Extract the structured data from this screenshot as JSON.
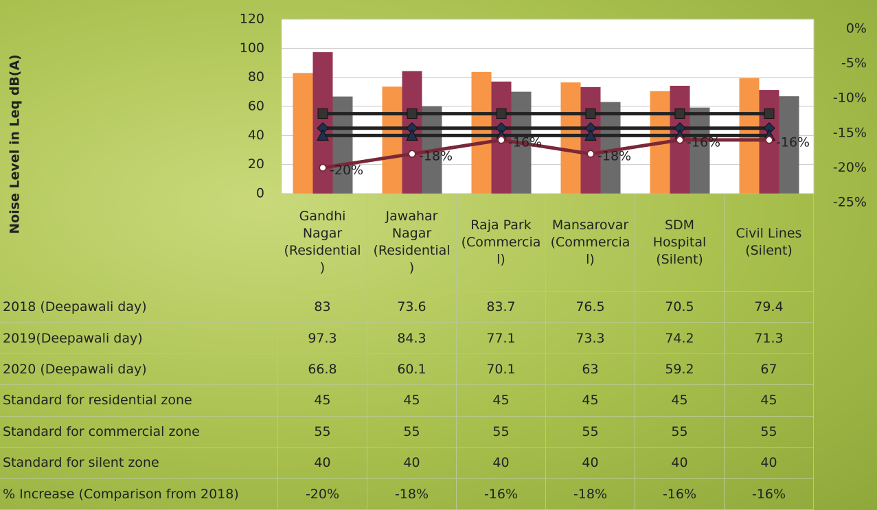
{
  "chart_data": {
    "type": "bar",
    "y_label": "Noise Level in Leq dB(A)",
    "categories": [
      "Gandhi Nagar (Residential)",
      "Jawahar Nagar (Residential)",
      "Raja Park (Commercial)",
      "Mansarovar (Commercial)",
      "SDM Hospital (Silent)",
      "Civil Lines (Silent)"
    ],
    "series": [
      {
        "name": "2018 (Deepawali day)",
        "type": "bar",
        "color": "#f79646",
        "values": [
          83,
          73.6,
          83.7,
          76.5,
          70.5,
          79.4
        ]
      },
      {
        "name": "2019(Deepawali day)",
        "type": "bar",
        "color": "#953553",
        "values": [
          97.3,
          84.3,
          77.1,
          73.3,
          74.2,
          71.3
        ]
      },
      {
        "name": "2020 (Deepawali day)",
        "type": "bar",
        "color": "#6b6b6b",
        "values": [
          66.8,
          60.1,
          70.1,
          63,
          59.2,
          67
        ]
      },
      {
        "name": "Standard for residential zone",
        "type": "line",
        "marker": "diamond",
        "color": "#222222",
        "values": [
          45,
          45,
          45,
          45,
          45,
          45
        ]
      },
      {
        "name": "Standard for commercial zone",
        "type": "line",
        "marker": "square",
        "color": "#222222",
        "values": [
          55,
          55,
          55,
          55,
          55,
          55
        ]
      },
      {
        "name": "Standard for silent zone",
        "type": "line",
        "marker": "triangle",
        "color": "#222222",
        "values": [
          40,
          40,
          40,
          40,
          40,
          40
        ]
      },
      {
        "name": "% Increase (Comparison from 2018)",
        "type": "line",
        "marker": "circle",
        "axis": "y2",
        "color": "#7a2838",
        "values": [
          -20,
          -18,
          -16,
          -18,
          -16,
          -16
        ],
        "value_labels": [
          "-20%",
          "-18%",
          "-16%",
          "-18%",
          "-16%",
          "-16%"
        ]
      }
    ],
    "ylim": [
      0,
      120
    ],
    "yticks": [
      0,
      20,
      40,
      60,
      80,
      100,
      120
    ],
    "y2lim": [
      -25,
      0
    ],
    "y2ticks": [
      {
        "value": 0,
        "label": "0%"
      },
      {
        "value": -5,
        "label": "-5%"
      },
      {
        "value": -10,
        "label": "-10%"
      },
      {
        "value": -15,
        "label": "-15%"
      },
      {
        "value": -20,
        "label": "-20%"
      },
      {
        "value": -25,
        "label": "-25%"
      }
    ],
    "grid": true
  }
}
